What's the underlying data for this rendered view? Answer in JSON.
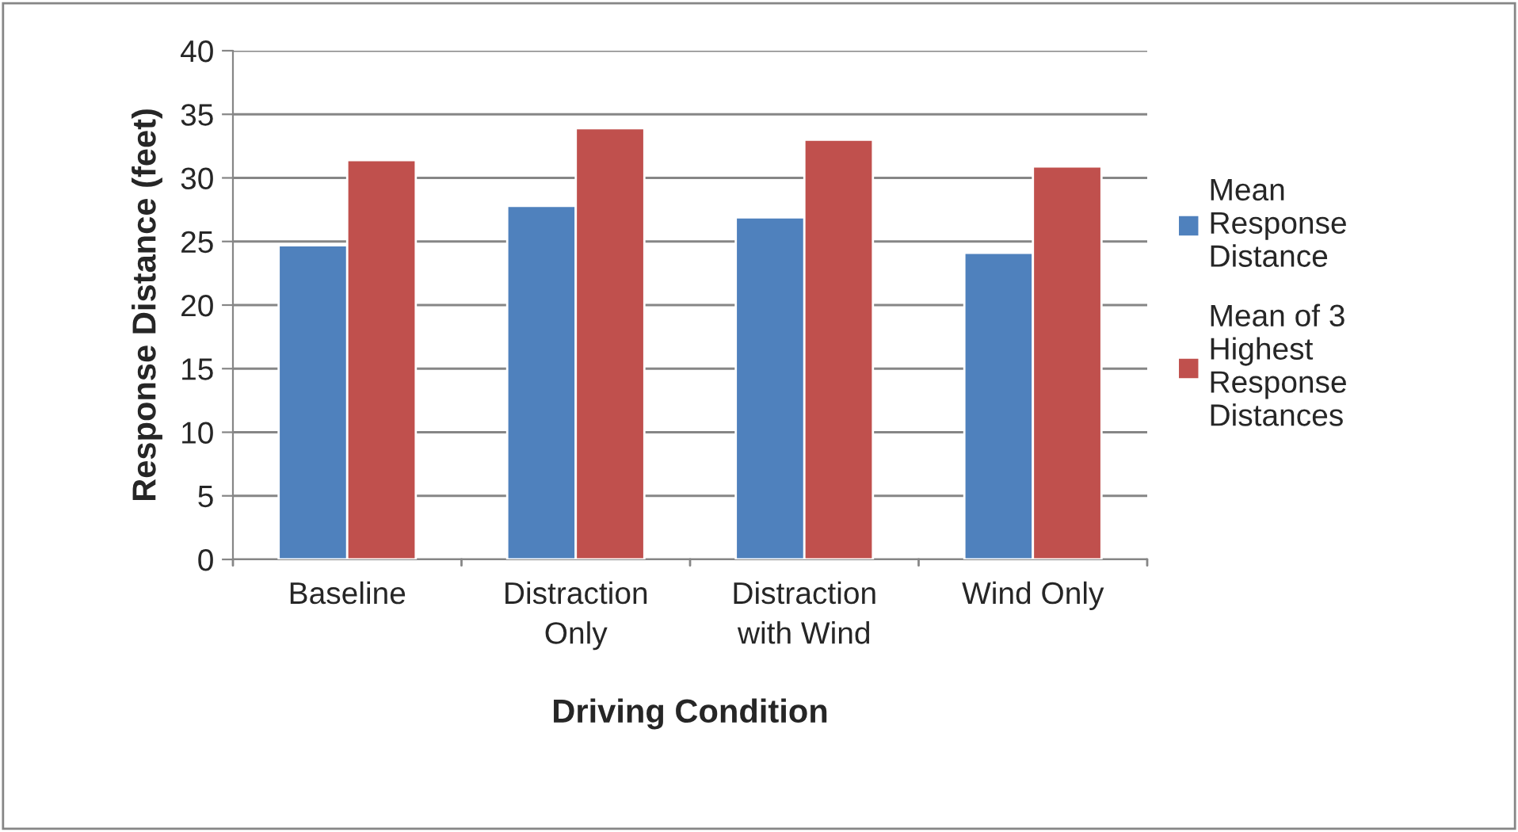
{
  "chart_data": {
    "type": "bar",
    "categories": [
      "Baseline",
      "Distraction\nOnly",
      "Distraction\nwith Wind",
      "Wind Only"
    ],
    "series": [
      {
        "name": "Mean\nResponse\nDistance",
        "color": "#4f81bd",
        "values": [
          24.7,
          27.8,
          26.9,
          24.1
        ]
      },
      {
        "name": "Mean of 3\nHighest\nResponse\nDistances",
        "color": "#c0504d",
        "values": [
          31.4,
          33.9,
          33.0,
          30.9
        ]
      }
    ],
    "xlabel": "Driving Condition",
    "ylabel": "Response Distance (feet)",
    "ylim": [
      0,
      40
    ],
    "yticks": [
      0,
      5,
      10,
      15,
      20,
      25,
      30,
      35,
      40
    ],
    "grid": "y",
    "legend": "right"
  }
}
